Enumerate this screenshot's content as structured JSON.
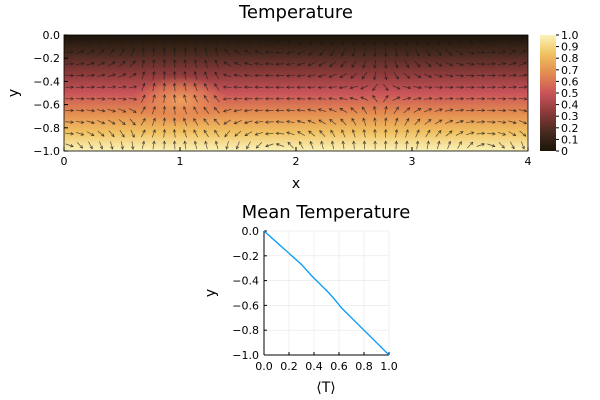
{
  "chart_data": [
    {
      "type": "heatmap",
      "title": "Temperature",
      "xlabel": "x",
      "ylabel": "y",
      "xlim": [
        0,
        4
      ],
      "ylim": [
        -1.0,
        0.0
      ],
      "x_ticks": [
        "0",
        "1",
        "2",
        "3",
        "4"
      ],
      "y_ticks": [
        "0.0",
        "−0.2",
        "−0.4",
        "−0.6",
        "−0.8",
        "−1.0"
      ],
      "colorbar": {
        "range": [
          0,
          1
        ],
        "ticks": [
          "0",
          "0.1",
          "0.2",
          "0.3",
          "0.4",
          "0.5",
          "0.6",
          "0.7",
          "0.8",
          "0.9",
          "1.0"
        ],
        "colormap": "heat",
        "colors": [
          "#1a1408",
          "#4a2a20",
          "#8c3a3a",
          "#c9545a",
          "#e38a50",
          "#f0c060",
          "#fbf3b8"
        ]
      },
      "field": "temperature increases from 0 at y = 0 to 1 at y = −1 with a warm plume near x ≈ 1, y ≈ −0.5",
      "overlay": "velocity arrows (quiver)",
      "arrow_color": "#1a1a1a"
    },
    {
      "type": "line",
      "title": "Mean Temperature",
      "xlabel": "⟨T⟩",
      "ylabel": "y",
      "xlim": [
        0.0,
        1.0
      ],
      "ylim": [
        -1.0,
        0.0
      ],
      "x_ticks": [
        "0.0",
        "0.2",
        "0.4",
        "0.6",
        "0.8",
        "1.0"
      ],
      "y_ticks": [
        "0.0",
        "−0.2",
        "−0.4",
        "−0.6",
        "−0.8",
        "−1.0"
      ],
      "grid": true,
      "series": [
        {
          "color": "#009af9",
          "x": [
            0.0,
            0.1,
            0.2,
            0.3,
            0.38,
            0.45,
            0.52,
            0.58,
            0.62,
            0.7,
            0.8,
            0.9,
            1.0
          ],
          "y": [
            0.0,
            -0.09,
            -0.18,
            -0.27,
            -0.36,
            -0.43,
            -0.5,
            -0.57,
            -0.62,
            -0.7,
            -0.8,
            -0.9,
            -1.0
          ]
        }
      ]
    }
  ]
}
